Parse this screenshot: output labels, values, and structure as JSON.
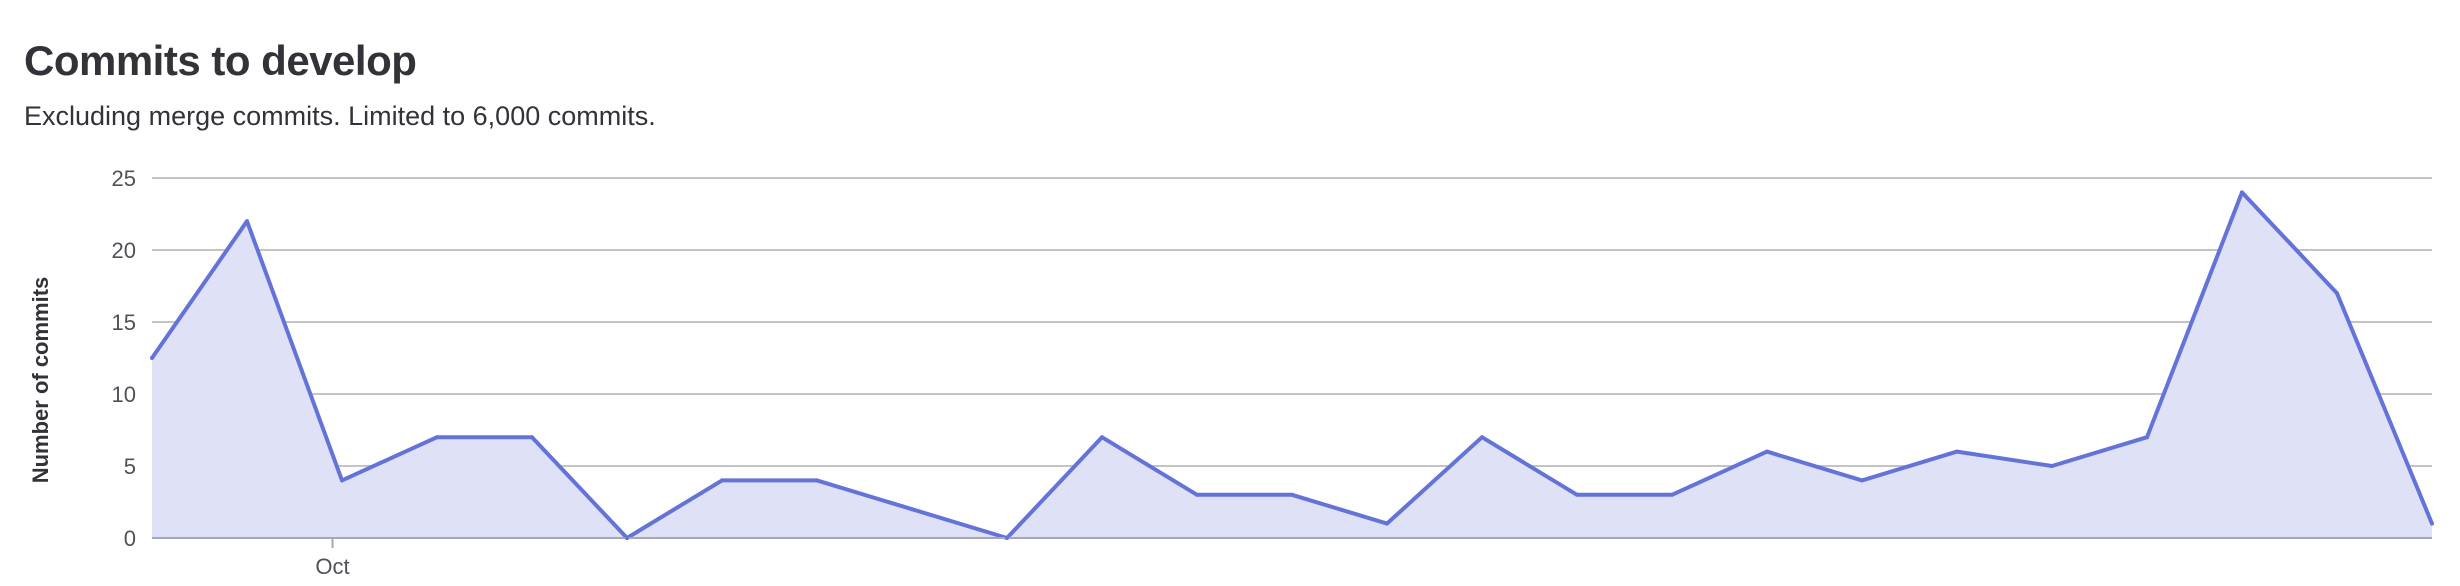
{
  "page": {
    "title": "Commits to develop",
    "subtitle": "Excluding merge commits. Limited to 6,000 commits."
  },
  "chart_data": {
    "type": "area",
    "title": "Commits to develop",
    "subtitle": "Excluding merge commits. Limited to 6,000 commits.",
    "xlabel": "",
    "ylabel": "Number of commits",
    "ylim": [
      0,
      25
    ],
    "y_ticks": [
      0,
      5,
      10,
      15,
      20,
      25
    ],
    "x_ticks": [
      {
        "label": "Oct",
        "index": 1.9
      }
    ],
    "grid": true,
    "colors": {
      "line": "#6473d8",
      "fill": "#dfe2f7",
      "grid": "#c4c4c7",
      "axis": "#a5a7b4"
    },
    "series": [
      {
        "values": [
          12.5,
          22,
          4,
          7,
          7,
          0,
          4,
          4,
          2,
          0,
          7,
          3,
          3,
          1,
          7,
          3,
          3,
          6,
          4,
          6,
          5,
          7,
          24,
          17,
          1
        ]
      }
    ]
  }
}
